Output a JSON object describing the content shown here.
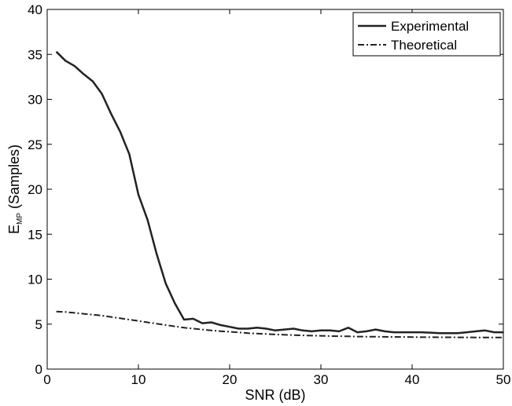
{
  "chart_data": {
    "type": "line",
    "title": "",
    "xlabel": "SNR (dB)",
    "ylabel_main": "E",
    "ylabel_sub": "MP",
    "ylabel_rest": " (Samples)",
    "xlim": [
      0,
      50
    ],
    "ylim": [
      0,
      40
    ],
    "xticks": [
      0,
      10,
      20,
      30,
      40,
      50
    ],
    "yticks": [
      0,
      5,
      10,
      15,
      20,
      25,
      30,
      35,
      40
    ],
    "grid": false,
    "legend_position": "top-right",
    "series": [
      {
        "name": "Experimental",
        "style": "solid",
        "color": "#222222",
        "x": [
          1,
          2,
          3,
          4,
          5,
          6,
          7,
          8,
          9,
          10,
          11,
          12,
          13,
          14,
          15,
          16,
          17,
          18,
          19,
          20,
          21,
          22,
          23,
          24,
          25,
          26,
          27,
          28,
          29,
          30,
          31,
          32,
          33,
          34,
          35,
          36,
          37,
          38,
          39,
          40,
          41,
          42,
          43,
          44,
          45,
          46,
          47,
          48,
          49,
          50
        ],
        "y": [
          35.3,
          34.3,
          33.7,
          32.8,
          32.0,
          30.6,
          28.4,
          26.4,
          23.9,
          19.4,
          16.6,
          12.8,
          9.5,
          7.3,
          5.5,
          5.6,
          5.1,
          5.2,
          4.9,
          4.7,
          4.5,
          4.5,
          4.6,
          4.5,
          4.3,
          4.4,
          4.5,
          4.3,
          4.2,
          4.3,
          4.3,
          4.2,
          4.6,
          4.1,
          4.2,
          4.4,
          4.2,
          4.1,
          4.1,
          4.1,
          4.1,
          4.05,
          4.0,
          4.0,
          4.0,
          4.1,
          4.2,
          4.3,
          4.1,
          4.1
        ]
      },
      {
        "name": "Theoretical",
        "style": "dashdot",
        "color": "#222222",
        "x": [
          1,
          2,
          3,
          4,
          5,
          6,
          7,
          8,
          9,
          10,
          11,
          12,
          13,
          14,
          15,
          16,
          17,
          18,
          19,
          20,
          21,
          22,
          23,
          24,
          25,
          26,
          27,
          28,
          29,
          30,
          31,
          32,
          33,
          34,
          35,
          36,
          37,
          38,
          39,
          40,
          41,
          42,
          43,
          44,
          45,
          46,
          47,
          48,
          49,
          50
        ],
        "y": [
          6.4,
          6.35,
          6.25,
          6.15,
          6.05,
          5.95,
          5.8,
          5.65,
          5.5,
          5.35,
          5.2,
          5.05,
          4.9,
          4.75,
          4.6,
          4.5,
          4.4,
          4.3,
          4.22,
          4.15,
          4.08,
          4.0,
          3.95,
          3.9,
          3.85,
          3.82,
          3.78,
          3.75,
          3.72,
          3.7,
          3.68,
          3.66,
          3.64,
          3.62,
          3.61,
          3.6,
          3.59,
          3.58,
          3.57,
          3.56,
          3.55,
          3.55,
          3.54,
          3.54,
          3.53,
          3.53,
          3.52,
          3.52,
          3.52,
          3.52
        ]
      }
    ]
  }
}
